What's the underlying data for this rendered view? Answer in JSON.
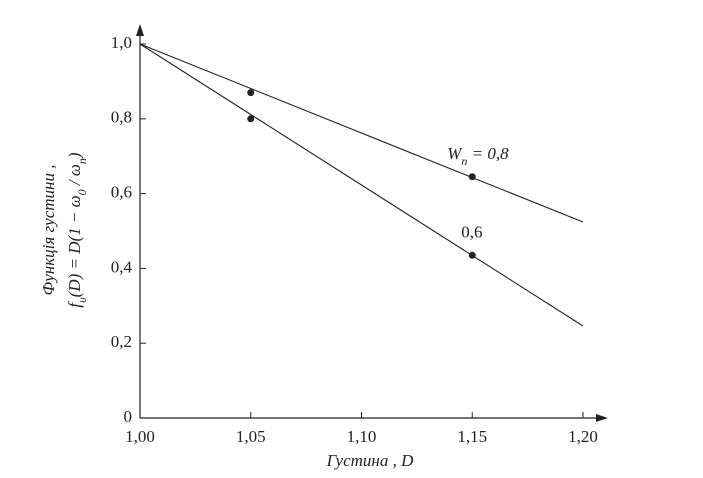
{
  "chart_data": {
    "type": "scatter",
    "xlabel": "Густина , D",
    "ylabel": [
      "Функція густини ,",
      [
        "f",
        "υ",
        "(D) = D(1 − ω",
        "0",
        " / ω",
        "n",
        ")"
      ]
    ],
    "xlim": [
      1.0,
      1.2
    ],
    "xticks": [
      {
        "value": 1.0,
        "label": "1,00"
      },
      {
        "value": 1.05,
        "label": "1,05"
      },
      {
        "value": 1.1,
        "label": "1,10"
      },
      {
        "value": 1.15,
        "label": "1,15"
      },
      {
        "value": 1.2,
        "label": "1,20"
      }
    ],
    "ylim": [
      0,
      1.0
    ],
    "yticks": [
      0,
      {
        "value": 0.2,
        "label": "0,2"
      },
      {
        "value": 0.4,
        "label": "0,4"
      },
      {
        "value": 0.6,
        "label": "0,6"
      },
      {
        "value": 0.8,
        "label": "0,8"
      },
      {
        "value": 1.0,
        "label": "1,0"
      }
    ],
    "color": "#222222",
    "series": [
      {
        "name": [
          "W",
          "n",
          " = 0,8"
        ],
        "x": [
          1.05,
          1.15
        ],
        "values": [
          0.87,
          0.645
        ],
        "line": {
          "x": [
            1.0,
            1.2
          ],
          "values": [
            1.0,
            0.524
          ]
        }
      },
      {
        "name": [
          "0,6"
        ],
        "x": [
          1.05,
          1.15
        ],
        "values": [
          0.8,
          0.435
        ],
        "line": {
          "x": [
            1.0,
            1.2
          ],
          "values": [
            1.0,
            0.246
          ]
        }
      }
    ]
  }
}
